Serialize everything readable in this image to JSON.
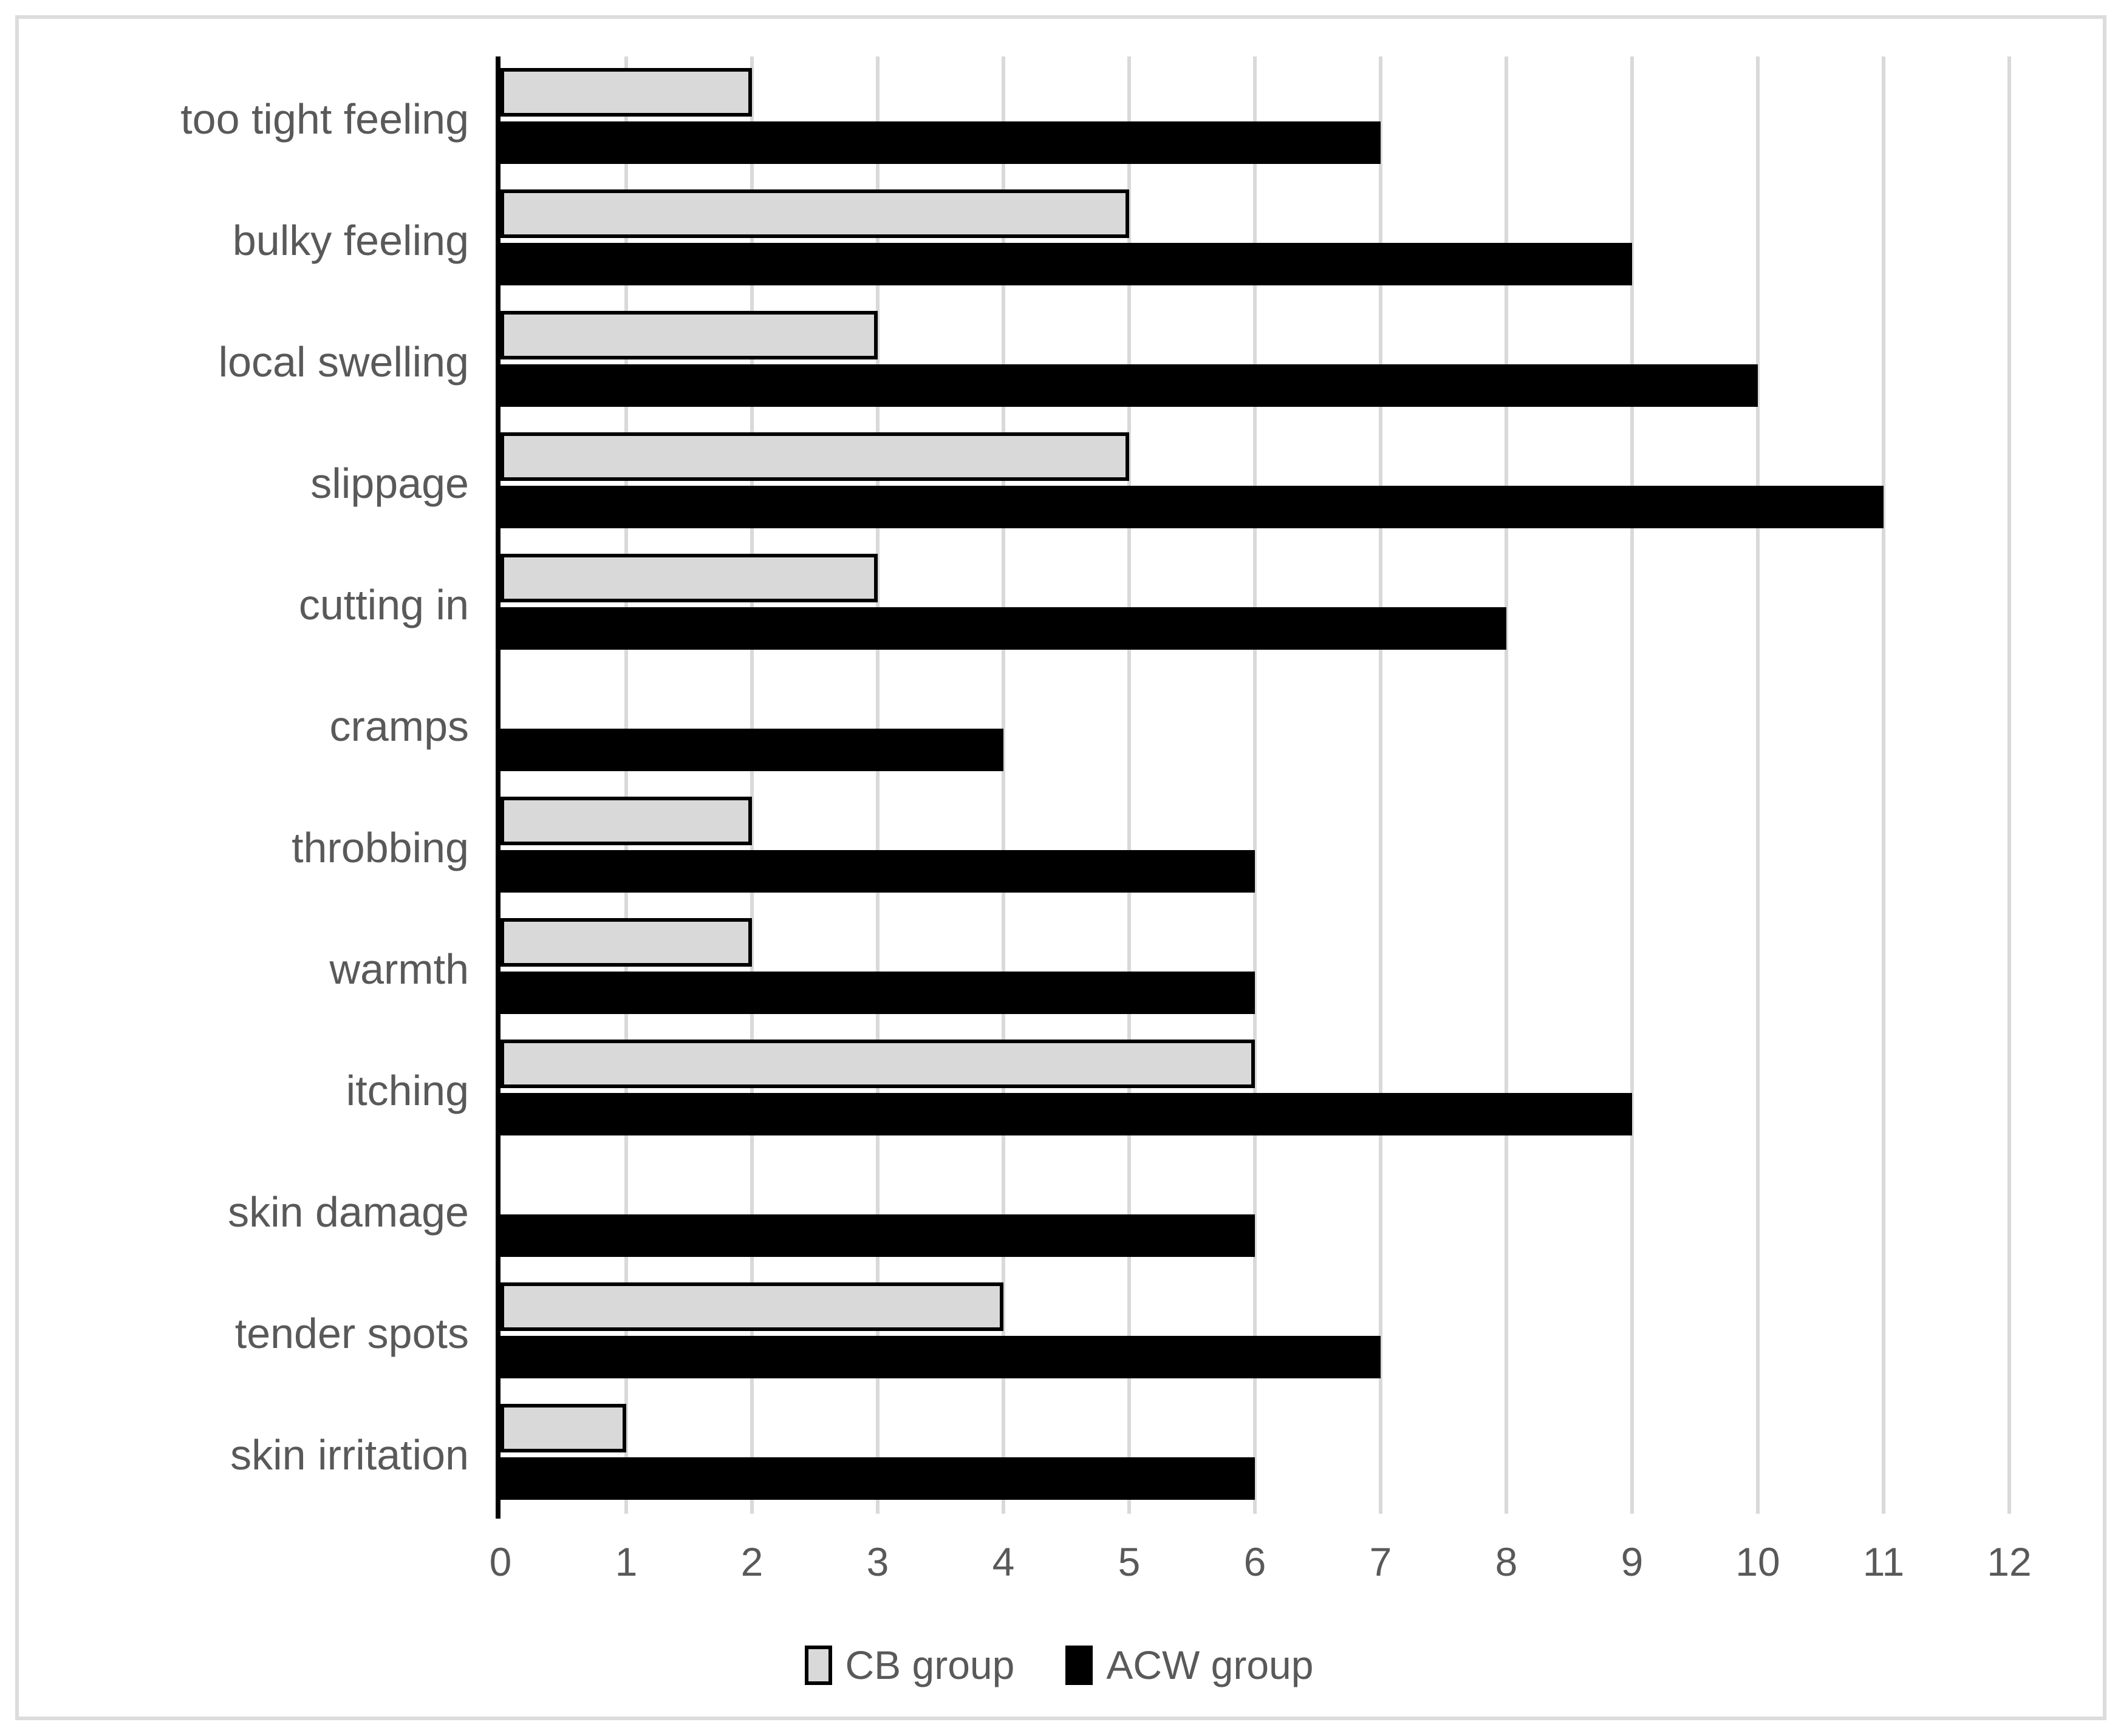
{
  "chart_data": {
    "type": "bar",
    "orientation": "horizontal",
    "title": "",
    "xlabel": "",
    "ylabel": "",
    "categories": [
      "too tight feeling",
      "bulky feeling",
      "local swelling",
      "slippage",
      "cutting in",
      "cramps",
      "throbbing",
      "warmth",
      "itching",
      "skin damage",
      "tender spots",
      "skin irritation"
    ],
    "series": [
      {
        "name": "CB group",
        "values": [
          2,
          5,
          3,
          5,
          3,
          0,
          2,
          2,
          6,
          0,
          4,
          1
        ],
        "fill": "#d9d9d9",
        "border": "#000000"
      },
      {
        "name": "ACW group",
        "values": [
          7,
          9,
          10,
          11,
          8,
          4,
          6,
          6,
          9,
          6,
          7,
          6
        ],
        "fill": "#000000"
      }
    ],
    "xlim": [
      0,
      12
    ],
    "x_ticks": [
      "0",
      "1",
      "2",
      "3",
      "4",
      "5",
      "6",
      "7",
      "8",
      "9",
      "10",
      "11",
      "12"
    ],
    "grid": true,
    "legend_position": "bottom",
    "colors": {
      "gridline": "#d9d9d9",
      "axis": "#000000",
      "text": "#595959",
      "frame": "#dcdcdc",
      "background": "#ffffff"
    }
  }
}
